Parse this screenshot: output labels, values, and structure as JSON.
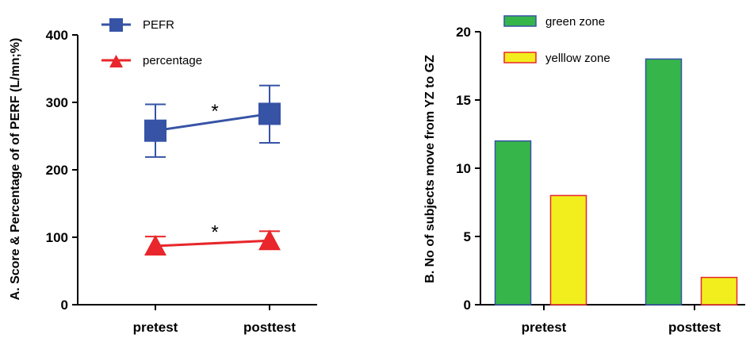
{
  "chart_data": [
    {
      "type": "line",
      "ylabel": "A. Score & Percentage of of PERF (L/mn;%)",
      "categories": [
        "pretest",
        "posttest"
      ],
      "ylim": [
        0,
        400
      ],
      "yticks": [
        "0",
        "100",
        "200",
        "300",
        "400"
      ],
      "series": [
        {
          "name": "PEFR",
          "values": [
            258,
            283
          ],
          "error_low": [
            219,
            240
          ],
          "error_high": [
            297,
            325
          ],
          "color": "#3653a6",
          "marker": "square"
        },
        {
          "name": "percentage",
          "values": [
            87,
            95
          ],
          "error_low": [
            87,
            95
          ],
          "error_high": [
            101,
            109
          ],
          "color": "#e8262b",
          "marker": "triangle"
        }
      ],
      "annotations": [
        {
          "text": "*",
          "series": 0
        },
        {
          "text": "*",
          "series": 1
        }
      ],
      "grid": false,
      "legend": "top-left"
    },
    {
      "type": "bar",
      "ylabel": "B. No of subjects move from YZ to GZ",
      "categories": [
        "pretest",
        "posttest"
      ],
      "ylim": [
        0,
        20
      ],
      "yticks": [
        "0",
        "5",
        "10",
        "15",
        "20"
      ],
      "series": [
        {
          "name": "green zone",
          "values": [
            12,
            18
          ],
          "color": "#36b54a",
          "stroke": "#3653a6"
        },
        {
          "name": "yelllow zone",
          "values": [
            8,
            2
          ],
          "color": "#f2ee1e",
          "stroke": "#e8262b"
        }
      ],
      "grid": false,
      "legend": "top"
    }
  ]
}
